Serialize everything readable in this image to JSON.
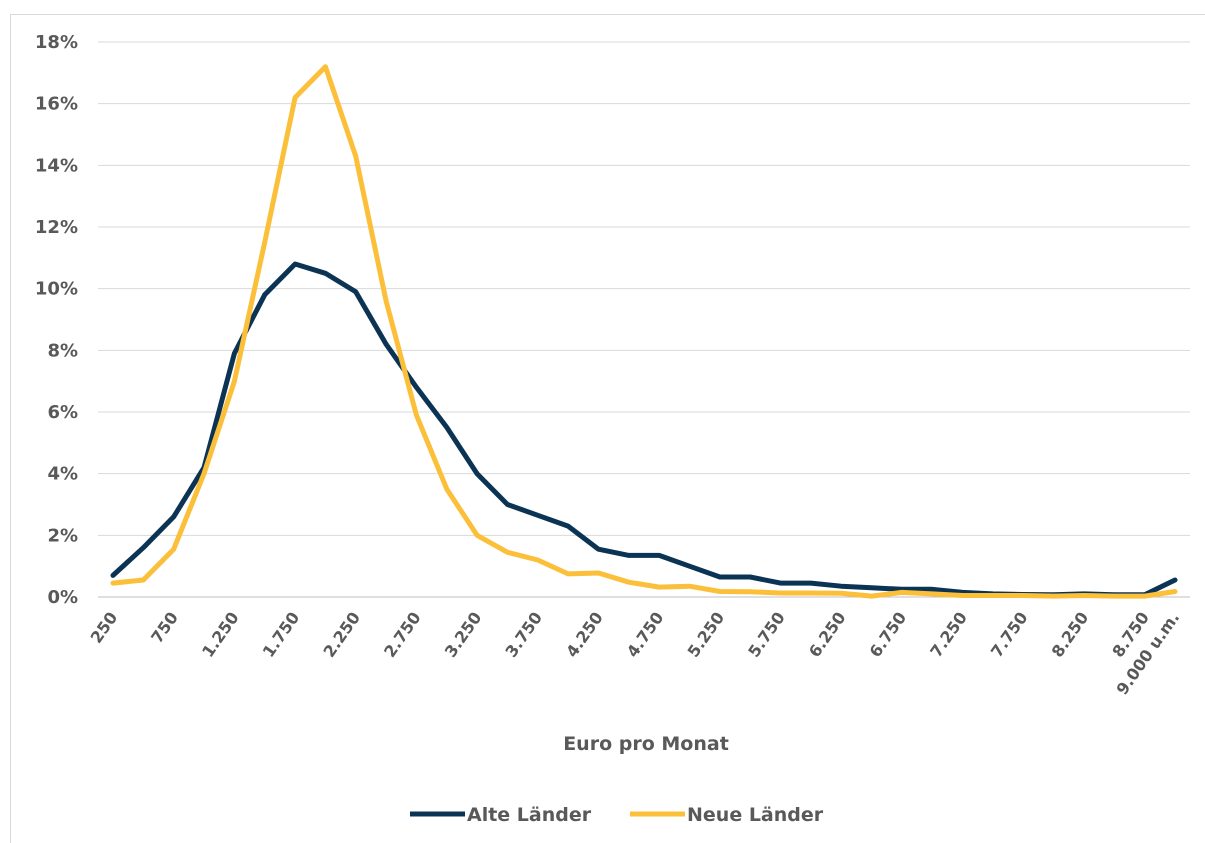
{
  "chart_data": {
    "type": "line",
    "title": "",
    "xlabel": "Euro pro Monat",
    "ylabel": "",
    "ylim": [
      0,
      18
    ],
    "yticks": [
      "0%",
      "2%",
      "4%",
      "6%",
      "8%",
      "10%",
      "12%",
      "14%",
      "16%",
      "18%"
    ],
    "x_tick_labels": [
      "250",
      "750",
      "1.250",
      "1.750",
      "2.250",
      "2.750",
      "3.250",
      "3.750",
      "4.250",
      "4.750",
      "5.250",
      "5.750",
      "6.250",
      "6.750",
      "7.250",
      "7.750",
      "8.250",
      "8.750",
      "9.000 u.m."
    ],
    "x": [
      "250",
      "500",
      "750",
      "1.000",
      "1.250",
      "1.500",
      "1.750",
      "2.000",
      "2.250",
      "2.500",
      "2.750",
      "3.000",
      "3.250",
      "3.500",
      "3.750",
      "4.000",
      "4.250",
      "4.500",
      "4.750",
      "5.000",
      "5.250",
      "5.500",
      "5.750",
      "6.000",
      "6.250",
      "6.500",
      "6.750",
      "7.000",
      "7.250",
      "7.500",
      "7.750",
      "8.000",
      "8.250",
      "8.500",
      "8.750",
      "9.000 u.m."
    ],
    "grid": true,
    "legend_position": "bottom",
    "series": [
      {
        "name": "Alte Länder",
        "color": "#0b3454",
        "values": [
          0.7,
          1.6,
          2.6,
          4.2,
          7.9,
          9.8,
          10.8,
          10.5,
          9.9,
          8.2,
          6.8,
          5.5,
          4.0,
          3.0,
          2.65,
          2.3,
          1.55,
          1.35,
          1.35,
          1.0,
          0.65,
          0.65,
          0.45,
          0.45,
          0.35,
          0.3,
          0.25,
          0.25,
          0.15,
          0.1,
          0.08,
          0.07,
          0.1,
          0.07,
          0.07,
          0.55
        ]
      },
      {
        "name": "Neue Länder",
        "color": "#fbbf3a",
        "values": [
          0.45,
          0.55,
          1.55,
          4.0,
          7.0,
          11.5,
          16.2,
          17.2,
          14.3,
          9.6,
          5.9,
          3.5,
          2.0,
          1.45,
          1.2,
          0.75,
          0.78,
          0.48,
          0.32,
          0.35,
          0.18,
          0.17,
          0.13,
          0.13,
          0.12,
          0.03,
          0.15,
          0.1,
          0.05,
          0.05,
          0.05,
          0.03,
          0.05,
          0.03,
          0.03,
          0.18
        ]
      }
    ]
  }
}
